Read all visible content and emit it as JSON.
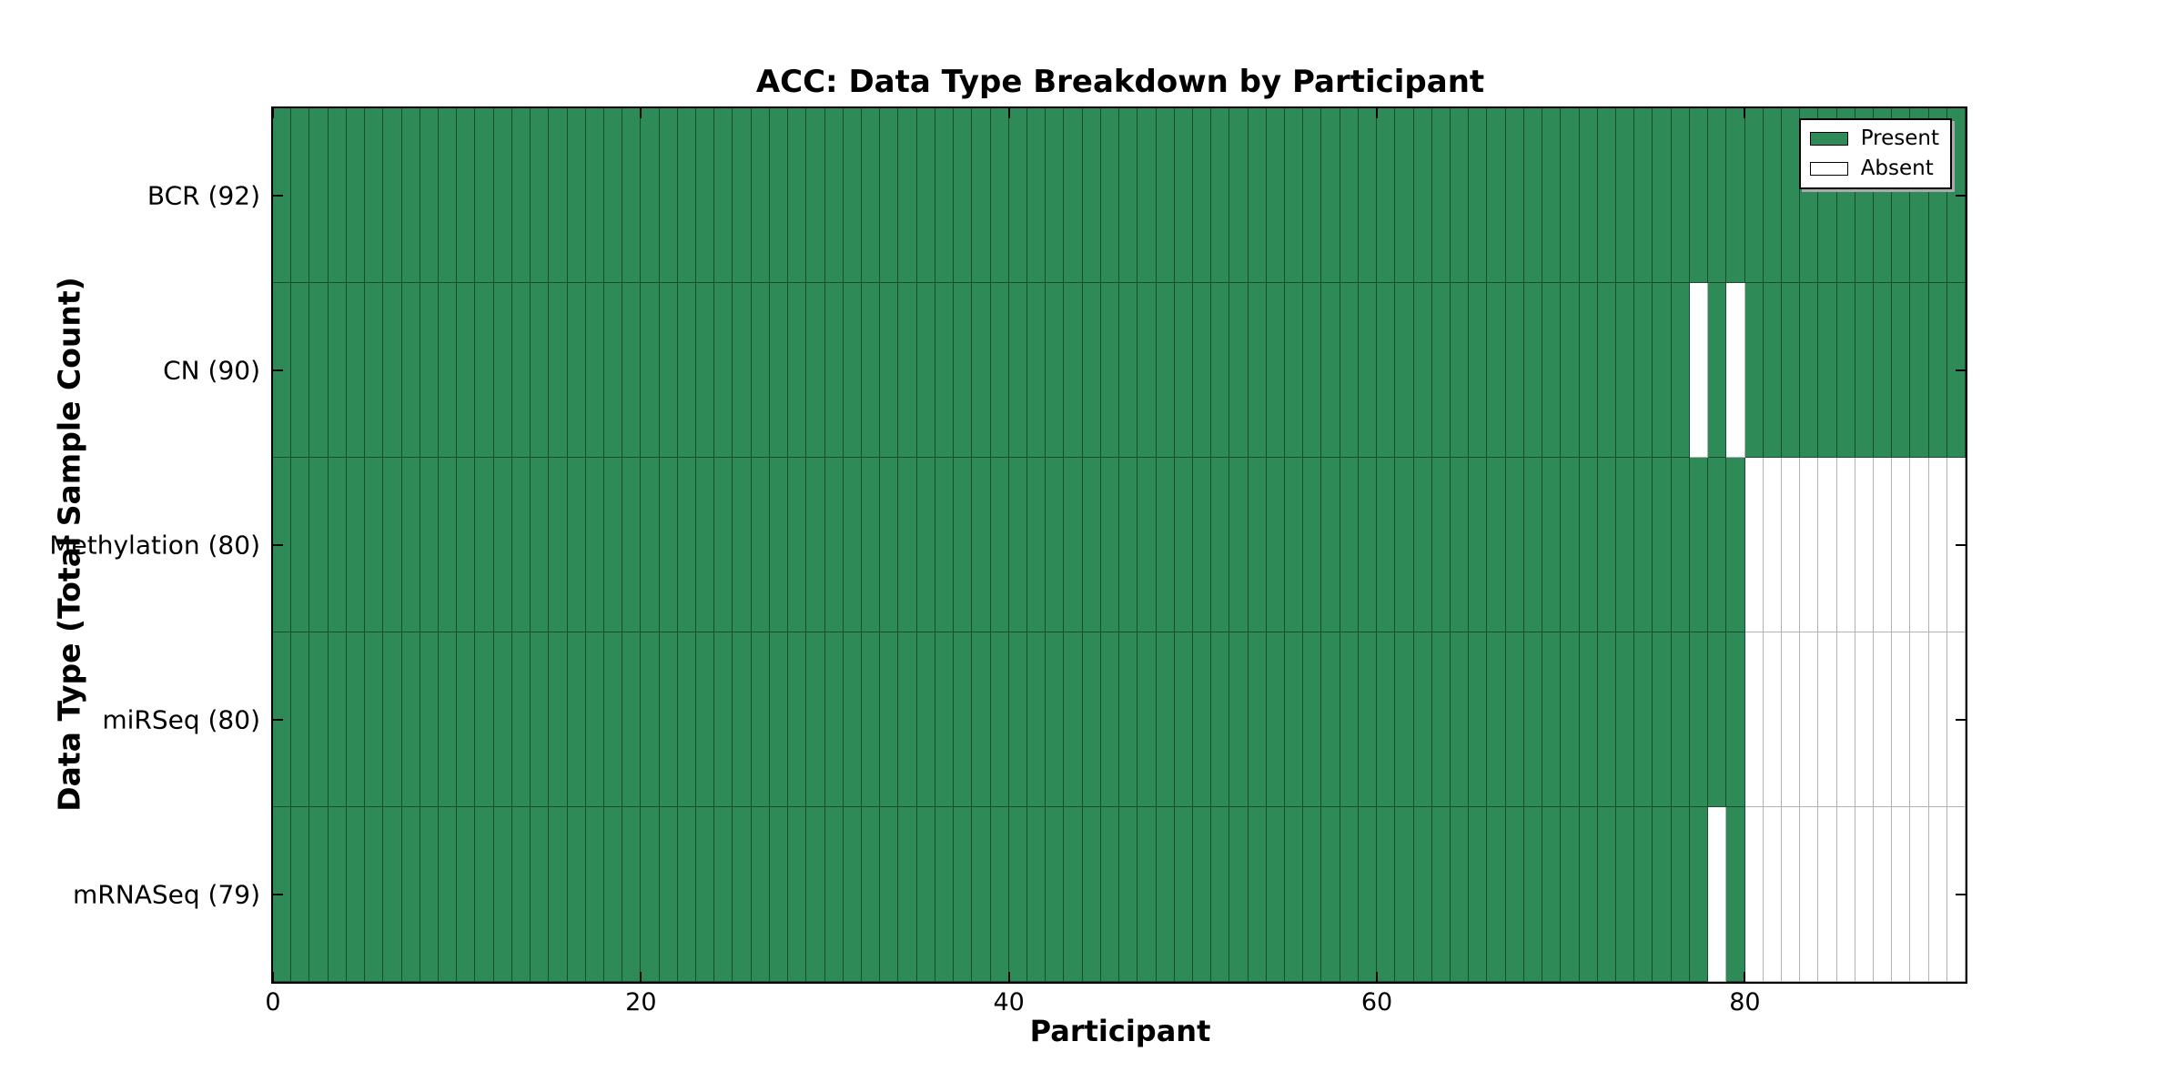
{
  "figure": {
    "background": "#ffffff"
  },
  "chart_data": {
    "type": "heatmap",
    "title": "ACC: Data Type Breakdown by Participant",
    "xlabel": "Participant",
    "ylabel": "Data Type (Total Sample Count)",
    "xlim": [
      0,
      92
    ],
    "n_participants": 92,
    "x_ticks": [
      0,
      20,
      40,
      60,
      80
    ],
    "grid": "cell-borders",
    "legend": {
      "position": "upper right",
      "entries": [
        {
          "label": "Present",
          "color": "#2e8b57"
        },
        {
          "label": "Absent",
          "color": "#ffffff"
        }
      ]
    },
    "colors": {
      "present": "#2e8b57",
      "absent": "#ffffff"
    },
    "rows": [
      {
        "label": "BCR (92)",
        "name": "BCR",
        "total_sample_count": 92,
        "absent_participants": []
      },
      {
        "label": "CN (90)",
        "name": "CN",
        "total_sample_count": 90,
        "absent_participants": [
          77,
          79
        ]
      },
      {
        "label": "Methylation (80)",
        "name": "Methylation",
        "total_sample_count": 80,
        "absent_participants": [
          80,
          81,
          82,
          83,
          84,
          85,
          86,
          87,
          88,
          89,
          90,
          91
        ]
      },
      {
        "label": "miRSeq (80)",
        "name": "miRSeq",
        "total_sample_count": 80,
        "absent_participants": [
          80,
          81,
          82,
          83,
          84,
          85,
          86,
          87,
          88,
          89,
          90,
          91
        ]
      },
      {
        "label": "mRNASeq (79)",
        "name": "mRNASeq",
        "total_sample_count": 79,
        "absent_participants": [
          78,
          80,
          81,
          82,
          83,
          84,
          85,
          86,
          87,
          88,
          89,
          90,
          91
        ]
      }
    ]
  }
}
